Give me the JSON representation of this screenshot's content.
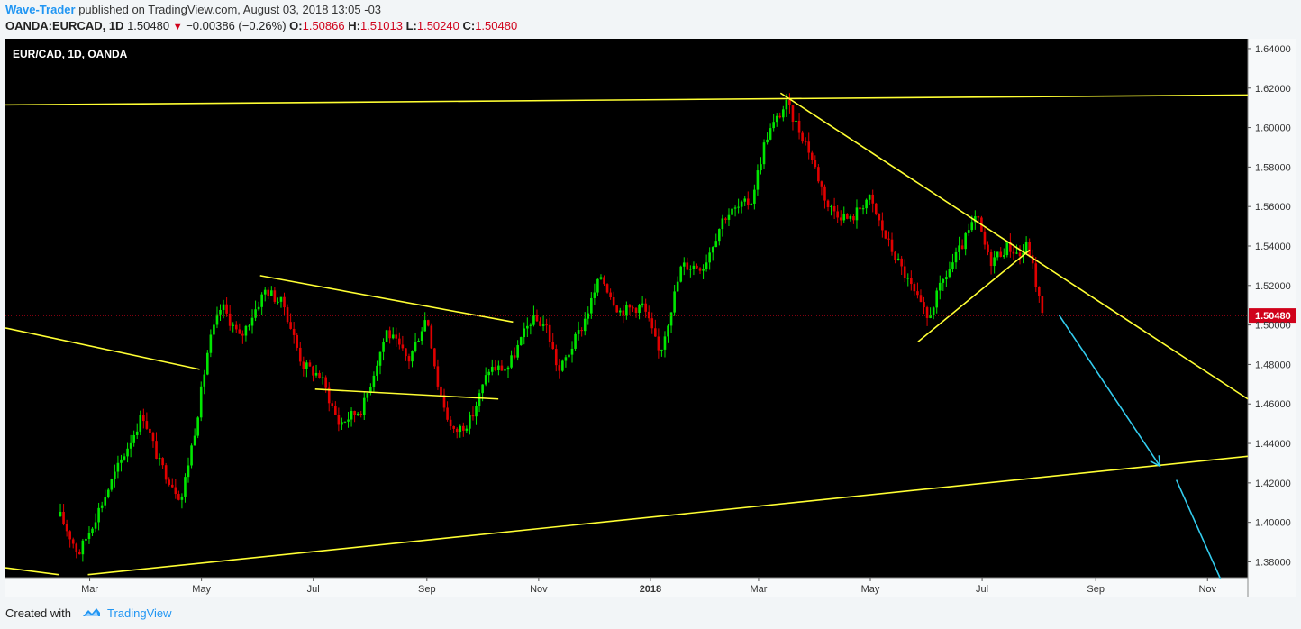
{
  "header": {
    "author": "Wave-Trader",
    "published_text": "published on TradingView.com, August 03, 2018 13:05 -03",
    "symbol": "OANDA:EURCAD, 1D",
    "last": "1.50480",
    "change": "−0.00386 (−0.26%)",
    "o_label": "O:",
    "o_value": "1.50866",
    "h_label": "H:",
    "h_value": "1.51013",
    "l_label": "L:",
    "l_value": "1.50240",
    "c_label": "C:",
    "c_value": "1.50480"
  },
  "footer": {
    "created_with": "Created with",
    "brand": "TradingView"
  },
  "colors": {
    "up": "#00e600",
    "down": "#e00000",
    "trendline": "#ffff33",
    "arrow": "#33ccee",
    "price_line": "#d0021b",
    "background": "#000000"
  },
  "chart_data": {
    "type": "candlestick",
    "title": "EUR/CAD, 1D, OANDA",
    "x_ticks": [
      "Mar",
      "May",
      "Jul",
      "Sep",
      "Nov",
      "2018",
      "Mar",
      "May",
      "Jul",
      "Sep",
      "Nov"
    ],
    "y_ticks": [
      "1.64000",
      "1.62000",
      "1.60000",
      "1.58000",
      "1.56000",
      "1.54000",
      "1.52000",
      "1.50000",
      "1.48000",
      "1.46000",
      "1.44000",
      "1.42000",
      "1.40000",
      "1.38000"
    ],
    "ylim": [
      1.372,
      1.645
    ],
    "last_price": 1.5048,
    "last_price_label": "1.50480",
    "price_path": [
      {
        "x": "2017-02-13",
        "y": 1.403
      },
      {
        "x": "2017-02-23",
        "y": 1.384
      },
      {
        "x": "2017-03-15",
        "y": 1.425
      },
      {
        "x": "2017-03-30",
        "y": 1.455
      },
      {
        "x": "2017-04-08",
        "y": 1.43
      },
      {
        "x": "2017-04-20",
        "y": 1.412
      },
      {
        "x": "2017-04-28",
        "y": 1.45
      },
      {
        "x": "2017-05-05",
        "y": 1.49
      },
      {
        "x": "2017-05-12",
        "y": 1.51
      },
      {
        "x": "2017-05-22",
        "y": 1.493
      },
      {
        "x": "2017-06-05",
        "y": 1.518
      },
      {
        "x": "2017-06-15",
        "y": 1.51
      },
      {
        "x": "2017-06-25",
        "y": 1.48
      },
      {
        "x": "2017-07-05",
        "y": 1.474
      },
      {
        "x": "2017-07-15",
        "y": 1.45
      },
      {
        "x": "2017-07-28",
        "y": 1.458
      },
      {
        "x": "2017-08-10",
        "y": 1.497
      },
      {
        "x": "2017-08-22",
        "y": 1.482
      },
      {
        "x": "2017-09-01",
        "y": 1.505
      },
      {
        "x": "2017-09-07",
        "y": 1.47
      },
      {
        "x": "2017-09-15",
        "y": 1.445
      },
      {
        "x": "2017-09-25",
        "y": 1.452
      },
      {
        "x": "2017-10-05",
        "y": 1.478
      },
      {
        "x": "2017-10-15",
        "y": 1.478
      },
      {
        "x": "2017-10-28",
        "y": 1.503
      },
      {
        "x": "2017-11-05",
        "y": 1.5
      },
      {
        "x": "2017-11-12",
        "y": 1.476
      },
      {
        "x": "2017-11-25",
        "y": 1.5
      },
      {
        "x": "2017-12-05",
        "y": 1.525
      },
      {
        "x": "2017-12-15",
        "y": 1.507
      },
      {
        "x": "2017-12-28",
        "y": 1.51
      },
      {
        "x": "2018-01-06",
        "y": 1.485
      },
      {
        "x": "2018-01-18",
        "y": 1.53
      },
      {
        "x": "2018-01-30",
        "y": 1.53
      },
      {
        "x": "2018-02-10",
        "y": 1.555
      },
      {
        "x": "2018-02-25",
        "y": 1.563
      },
      {
        "x": "2018-03-05",
        "y": 1.595
      },
      {
        "x": "2018-03-16",
        "y": 1.612
      },
      {
        "x": "2018-03-28",
        "y": 1.59
      },
      {
        "x": "2018-04-08",
        "y": 1.56
      },
      {
        "x": "2018-04-20",
        "y": 1.553
      },
      {
        "x": "2018-04-30",
        "y": 1.565
      },
      {
        "x": "2018-05-10",
        "y": 1.543
      },
      {
        "x": "2018-05-20",
        "y": 1.525
      },
      {
        "x": "2018-06-01",
        "y": 1.503
      },
      {
        "x": "2018-06-10",
        "y": 1.523
      },
      {
        "x": "2018-06-20",
        "y": 1.54
      },
      {
        "x": "2018-06-28",
        "y": 1.555
      },
      {
        "x": "2018-07-05",
        "y": 1.532
      },
      {
        "x": "2018-07-15",
        "y": 1.54
      },
      {
        "x": "2018-07-22",
        "y": 1.535
      },
      {
        "x": "2018-07-26",
        "y": 1.541
      },
      {
        "x": "2018-08-03",
        "y": 1.5048
      }
    ],
    "trendlines": [
      {
        "name": "upper-resistance",
        "from": {
          "x": "2017-01-14",
          "y": 1.6115
        },
        "to": {
          "x": "2018-11-23",
          "y": 1.6165
        }
      },
      {
        "name": "lower-support",
        "from": {
          "x": "2017-02-28",
          "y": 1.3735
        },
        "to": {
          "x": "2018-11-23",
          "y": 1.4335
        }
      },
      {
        "name": "left-falling-line",
        "from": {
          "x": "2017-01-14",
          "y": 1.4985
        },
        "to": {
          "x": "2017-04-30",
          "y": 1.4775
        }
      },
      {
        "name": "left-short-line",
        "from": {
          "x": "2017-01-14",
          "y": 1.377
        },
        "to": {
          "x": "2017-02-12",
          "y": 1.3735
        }
      },
      {
        "name": "wedge-upper",
        "from": {
          "x": "2017-06-02",
          "y": 1.525
        },
        "to": {
          "x": "2017-10-18",
          "y": 1.5015
        }
      },
      {
        "name": "wedge-lower",
        "from": {
          "x": "2017-07-02",
          "y": 1.4675
        },
        "to": {
          "x": "2017-10-10",
          "y": 1.4625
        }
      },
      {
        "name": "descending-resistance",
        "from": {
          "x": "2018-03-13",
          "y": 1.6175
        },
        "to": {
          "x": "2018-11-23",
          "y": 1.4625
        }
      },
      {
        "name": "rising-channel",
        "from": {
          "x": "2018-05-27",
          "y": 1.4915
        },
        "to": {
          "x": "2018-07-27",
          "y": 1.538
        }
      }
    ],
    "projection_arrows": [
      {
        "from": {
          "x": "2018-08-12",
          "y": 1.505
        },
        "to": {
          "x": "2018-10-06",
          "y": 1.4285
        },
        "arrowhead": true
      },
      {
        "from": {
          "x": "2018-10-15",
          "y": 1.4215
        },
        "to": {
          "x": "2018-11-08",
          "y": 1.3715
        },
        "arrowhead": false
      }
    ]
  }
}
